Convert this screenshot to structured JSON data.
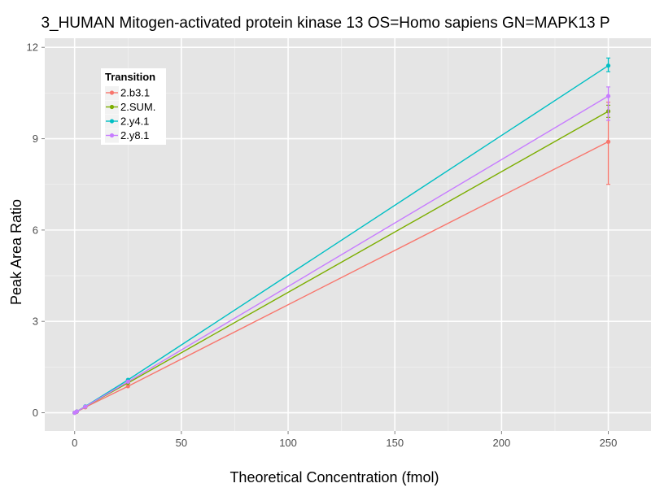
{
  "chart_data": {
    "type": "line",
    "title": "3_HUMAN Mitogen-activated protein kinase 13 OS=Homo sapiens GN=MAPK13 P",
    "xlabel": "Theoretical Concentration (fmol)",
    "ylabel": "Peak Area Ratio",
    "xlim": [
      -14,
      270
    ],
    "ylim": [
      -0.6,
      12.3
    ],
    "xticks": [
      0,
      50,
      100,
      150,
      200,
      250
    ],
    "yticks": [
      0,
      3,
      6,
      9,
      12
    ],
    "grid": true,
    "legend": {
      "title": "Transition",
      "placement": "top-left"
    },
    "series": [
      {
        "name": "2.b3.1",
        "color": "#F8766D",
        "x": [
          0,
          1,
          5,
          25,
          250
        ],
        "y": [
          0.0,
          0.03,
          0.18,
          0.87,
          8.9
        ],
        "error_high": [
          null,
          null,
          null,
          null,
          10.2
        ],
        "error_low": [
          null,
          null,
          null,
          null,
          7.5
        ]
      },
      {
        "name": "2.SUM.",
        "color": "#7CAE00",
        "x": [
          0,
          1,
          5,
          25,
          250
        ],
        "y": [
          0.0,
          0.04,
          0.2,
          0.98,
          9.9
        ],
        "error_high": [
          null,
          null,
          null,
          null,
          10.1
        ],
        "error_low": [
          null,
          null,
          null,
          null,
          9.7
        ]
      },
      {
        "name": "2.y4.1",
        "color": "#00BFC4",
        "x": [
          0,
          1,
          5,
          25,
          250
        ],
        "y": [
          0.0,
          0.04,
          0.21,
          1.08,
          11.4
        ],
        "error_high": [
          null,
          null,
          null,
          null,
          11.65
        ],
        "error_low": [
          null,
          null,
          null,
          null,
          11.2
        ]
      },
      {
        "name": "2.y8.1",
        "color": "#C77CFF",
        "x": [
          0,
          1,
          5,
          25,
          250
        ],
        "y": [
          0.0,
          0.04,
          0.2,
          1.02,
          10.4
        ],
        "error_high": [
          null,
          null,
          null,
          null,
          10.7
        ],
        "error_low": [
          null,
          null,
          null,
          null,
          9.6
        ]
      }
    ]
  }
}
